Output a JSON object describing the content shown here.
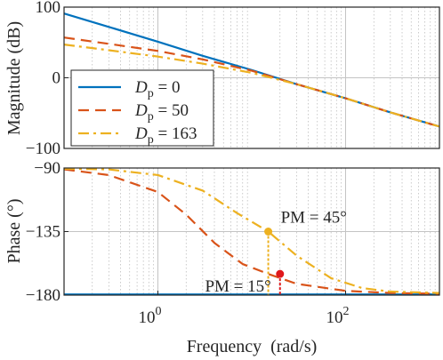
{
  "chart_data": [
    {
      "type": "line",
      "panel": "magnitude",
      "ylabel": "Magnitude (dB)",
      "xscale": "log",
      "xlim": [
        0.1,
        1000
      ],
      "ylim": [
        -100,
        100
      ],
      "yticks": [
        100,
        0,
        -100
      ],
      "ytick_labels": [
        "100",
        "0",
        "−100"
      ],
      "grid": true,
      "legend_position": "lower-left",
      "legend_labels": [
        {
          "sym": "D",
          "sub": "p",
          "rest": " = 0"
        },
        {
          "sym": "D",
          "sub": "p",
          "rest": " = 50"
        },
        {
          "sym": "D",
          "sub": "p",
          "rest": " = 163"
        }
      ],
      "series": [
        {
          "name": "Dp = 0",
          "color": "#0072BD",
          "dash": "solid",
          "points": [
            [
              0.1,
              91
            ],
            [
              0.3,
              72
            ],
            [
              1,
              51
            ],
            [
              3,
              31
            ],
            [
              10,
              11
            ],
            [
              30,
              -9
            ],
            [
              100,
              -29
            ],
            [
              300,
              -49
            ],
            [
              1000,
              -69
            ]
          ]
        },
        {
          "name": "Dp = 50",
          "color": "#D95319",
          "dash": "dash",
          "points": [
            [
              0.1,
              57
            ],
            [
              0.3,
              48
            ],
            [
              1,
              38
            ],
            [
              3,
              26
            ],
            [
              10,
              10
            ],
            [
              30,
              -9
            ],
            [
              100,
              -29
            ],
            [
              300,
              -49
            ],
            [
              1000,
              -69
            ]
          ]
        },
        {
          "name": "Dp = 163",
          "color": "#EDB120",
          "dash": "dashdot",
          "points": [
            [
              0.1,
              47
            ],
            [
              0.3,
              39
            ],
            [
              1,
              30
            ],
            [
              3,
              20
            ],
            [
              10,
              7
            ],
            [
              30,
              -9
            ],
            [
              100,
              -29
            ],
            [
              300,
              -49
            ],
            [
              1000,
              -69
            ]
          ]
        }
      ]
    },
    {
      "type": "line",
      "panel": "phase",
      "ylabel": "Phase (°)",
      "xlabel": "Frequency  (rad/s)",
      "xscale": "log",
      "xlim": [
        0.1,
        1000
      ],
      "ylim": [
        -180,
        -90
      ],
      "yticks": [
        -90,
        -135,
        -180
      ],
      "ytick_labels": [
        "−90",
        "−135",
        "−180"
      ],
      "xticks": [
        1,
        100
      ],
      "xtick_labels": [
        {
          "base": "10",
          "exp": "0"
        },
        {
          "base": "10",
          "exp": "2"
        }
      ],
      "grid": true,
      "series": [
        {
          "name": "Dp = 0",
          "color": "#0072BD",
          "dash": "solid",
          "points": [
            [
              0.1,
              -179.5
            ],
            [
              1000,
              -179.5
            ]
          ]
        },
        {
          "name": "Dp = 50",
          "color": "#D95319",
          "dash": "dash",
          "points": [
            [
              0.1,
              -91
            ],
            [
              0.3,
              -95
            ],
            [
              1,
              -107
            ],
            [
              2,
              -123
            ],
            [
              4,
              -143
            ],
            [
              8,
              -158
            ],
            [
              15,
              -165
            ],
            [
              30,
              -172
            ],
            [
              100,
              -177
            ],
            [
              300,
              -178.5
            ],
            [
              1000,
              -179
            ]
          ]
        },
        {
          "name": "Dp = 163",
          "color": "#EDB120",
          "dash": "dashdot",
          "points": [
            [
              0.1,
              -90.5
            ],
            [
              0.3,
              -91
            ],
            [
              1,
              -95
            ],
            [
              3,
              -106
            ],
            [
              7,
              -122
            ],
            [
              15,
              -135
            ],
            [
              30,
              -152
            ],
            [
              70,
              -168
            ],
            [
              150,
              -175
            ],
            [
              300,
              -177.5
            ],
            [
              1000,
              -178.5
            ]
          ]
        }
      ],
      "annotations": [
        {
          "text": "PM = 45°",
          "x": 15,
          "y": -135,
          "color": "#EDB120",
          "label_side": "right"
        },
        {
          "text": "PM = 15°",
          "x": 20,
          "y": -165,
          "color": "#E0181B",
          "label_side": "left"
        }
      ]
    }
  ]
}
